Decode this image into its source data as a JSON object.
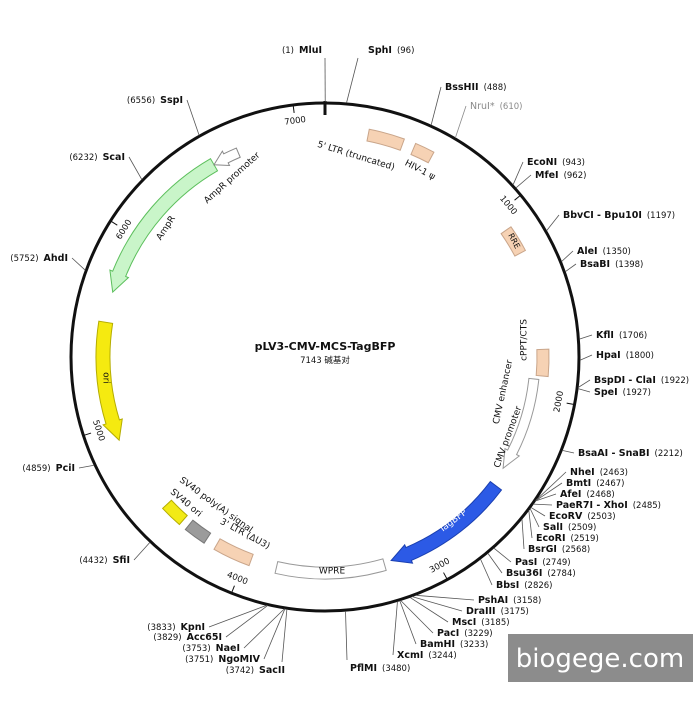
{
  "title": "pLV3-CMV-MCS-TagBFP",
  "size": "7143 碱基对",
  "ticks": [
    "1000",
    "2000",
    "3000",
    "4000",
    "5000",
    "6000",
    "7000"
  ],
  "sites": [
    {
      "name": "MluI",
      "pos": "(1)"
    },
    {
      "name": "SphI",
      "pos": "(96)"
    },
    {
      "name": "BssHII",
      "pos": "(488)"
    },
    {
      "name": "NruI*",
      "pos": "(610)",
      "color": "#8a8a8a"
    },
    {
      "name": "EcoNI",
      "pos": "(943)"
    },
    {
      "name": "MfeI",
      "pos": "(962)"
    },
    {
      "name": "BbvCI - Bpu10I",
      "pos": "(1197)"
    },
    {
      "name": "AleI",
      "pos": "(1350)"
    },
    {
      "name": "BsaBI",
      "pos": "(1398)"
    },
    {
      "name": "KflI",
      "pos": "(1706)"
    },
    {
      "name": "HpaI",
      "pos": "(1800)"
    },
    {
      "name": "BspDI - ClaI",
      "pos": "(1922)"
    },
    {
      "name": "SpeI",
      "pos": "(1927)"
    },
    {
      "name": "BsaAI - SnaBI",
      "pos": "(2212)"
    },
    {
      "name": "NheI",
      "pos": "(2463)"
    },
    {
      "name": "BmtI",
      "pos": "(2467)"
    },
    {
      "name": "AfeI",
      "pos": "(2468)"
    },
    {
      "name": "PaeR7I - XhoI",
      "pos": "(2485)"
    },
    {
      "name": "EcoRV",
      "pos": "(2503)"
    },
    {
      "name": "SalI",
      "pos": "(2509)"
    },
    {
      "name": "EcoRI",
      "pos": "(2519)"
    },
    {
      "name": "BsrGI",
      "pos": "(2568)"
    },
    {
      "name": "PasI",
      "pos": "(2749)"
    },
    {
      "name": "Bsu36I",
      "pos": "(2784)"
    },
    {
      "name": "BbsI",
      "pos": "(2826)"
    },
    {
      "name": "PshAI",
      "pos": "(3158)"
    },
    {
      "name": "DraIII",
      "pos": "(3175)"
    },
    {
      "name": "MscI",
      "pos": "(3185)"
    },
    {
      "name": "PacI",
      "pos": "(3229)"
    },
    {
      "name": "BamHI",
      "pos": "(3233)"
    },
    {
      "name": "XcmI",
      "pos": "(3244)"
    },
    {
      "name": "PflMI",
      "pos": "(3480)"
    },
    {
      "name": "SacII",
      "pos": "(3742)"
    },
    {
      "name": "NgoMIV",
      "pos": "(3751)"
    },
    {
      "name": "NaeI",
      "pos": "(3753)"
    },
    {
      "name": "Acc65I",
      "pos": "(3829)"
    },
    {
      "name": "KpnI",
      "pos": "(3833)"
    },
    {
      "name": "SfiI",
      "pos": "(4432)"
    },
    {
      "name": "PciI",
      "pos": "(4859)"
    },
    {
      "name": "AhdI",
      "pos": "(5752)"
    },
    {
      "name": "ScaI",
      "pos": "(6232)"
    },
    {
      "name": "SspI",
      "pos": "(6556)"
    }
  ],
  "features": [
    {
      "label": "5' LTR (truncated)"
    },
    {
      "label": "HIV-1 ψ"
    },
    {
      "label": "RRE"
    },
    {
      "label": "cPPT/CTS"
    },
    {
      "label": "CMV enhancer"
    },
    {
      "label": "CMV promoter"
    },
    {
      "label": "TagBFP"
    },
    {
      "label": "WPRE"
    },
    {
      "label": "3' LTR (ΔU3)"
    },
    {
      "label": "SV40 ori"
    },
    {
      "label": "SV40 poly(A) signal"
    },
    {
      "label": "ori"
    },
    {
      "label": "AmpR"
    },
    {
      "label": "AmpR promoter"
    }
  ],
  "watermark": "biogege.com"
}
